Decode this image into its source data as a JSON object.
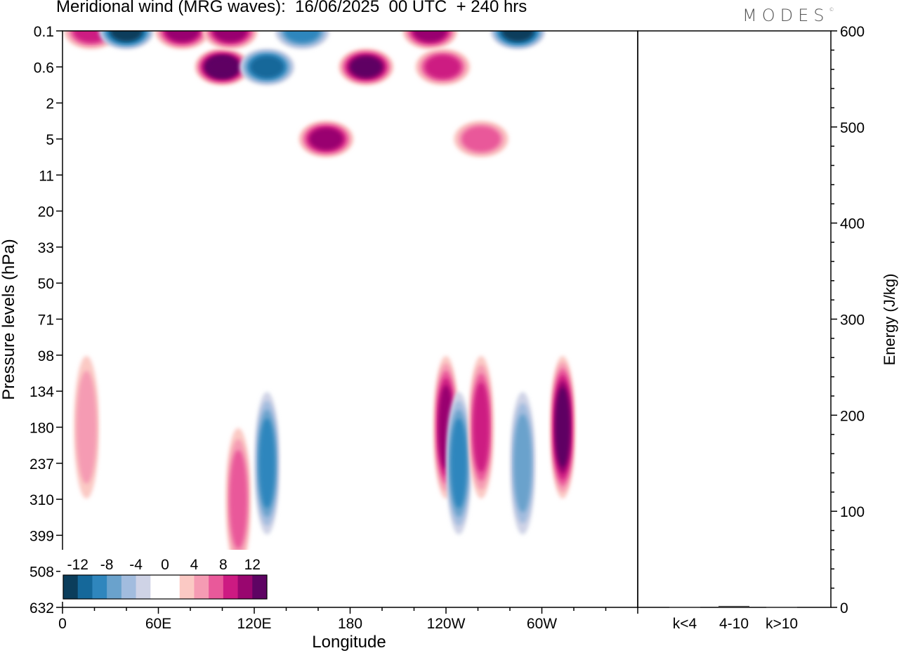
{
  "title": "Meridional wind (MRG waves):  16/06/2025  00 UTC  + 240 hrs",
  "logo": "MODES",
  "logo_mark": "©",
  "chart_data": [
    {
      "type": "heatmap",
      "xlabel": "Longitude",
      "ylabel": "Pressure levels (hPa)",
      "x_ticks": [
        "0",
        "60E",
        "120E",
        "180",
        "120W",
        "60W"
      ],
      "y_ticks": [
        "0.1",
        "0.6",
        "2",
        "5",
        "11",
        "20",
        "33",
        "50",
        "71",
        "98",
        "134",
        "180",
        "237",
        "310",
        "399",
        "508",
        "632"
      ],
      "colorbar": {
        "labels": [
          "-12",
          "-8",
          "-4",
          "0",
          "4",
          "8",
          "12"
        ],
        "colors": [
          "#0b3d5b",
          "#15689a",
          "#2f86bd",
          "#6aa2cc",
          "#a2bcde",
          "#cfd3e6",
          "#ffffff",
          "#ffffff",
          "#fbc9c4",
          "#f59bb3",
          "#e9599a",
          "#cd1a82",
          "#99066f",
          "#5e0463"
        ]
      },
      "features": [
        {
          "lon": 18,
          "level": "0.1",
          "value": 9
        },
        {
          "lon": 40,
          "level": "0.1",
          "value": -12
        },
        {
          "lon": 75,
          "level": "0.1",
          "value": 10
        },
        {
          "lon": 100,
          "level": "0.6",
          "value": 14
        },
        {
          "lon": 105,
          "level": "0.1",
          "value": 11
        },
        {
          "lon": 128,
          "level": "0.6",
          "value": -10
        },
        {
          "lon": 150,
          "level": "0.1",
          "value": -9
        },
        {
          "lon": 165,
          "level": "5",
          "value": 10
        },
        {
          "lon": 190,
          "level": "0.6",
          "value": 12
        },
        {
          "lon": 230,
          "level": "0.1",
          "value": 10
        },
        {
          "lon": 238,
          "level": "0.6",
          "value": 8
        },
        {
          "lon": 262,
          "level": "5",
          "value": 6
        },
        {
          "lon": 285,
          "level": "0.1",
          "value": -13
        },
        {
          "lon": 15,
          "level": "180",
          "value": 4
        },
        {
          "lon": 128,
          "level": "237",
          "value": -9
        },
        {
          "lon": 110,
          "level": "310",
          "value": 7
        },
        {
          "lon": 240,
          "level": "180",
          "value": 10
        },
        {
          "lon": 248,
          "level": "237",
          "value": -8
        },
        {
          "lon": 262,
          "level": "180",
          "value": 9
        },
        {
          "lon": 288,
          "level": "237",
          "value": -7
        },
        {
          "lon": 313,
          "level": "180",
          "value": 12
        }
      ]
    },
    {
      "type": "bar",
      "categories": [
        "k<4",
        "4-10",
        "k>10"
      ],
      "values": [
        0.5,
        1.5,
        0.5
      ],
      "ylabel": "Energy (J/kg)",
      "ylim": [
        0,
        600
      ],
      "y_ticks": [
        "0",
        "100",
        "200",
        "300",
        "400",
        "500",
        "600"
      ]
    }
  ]
}
